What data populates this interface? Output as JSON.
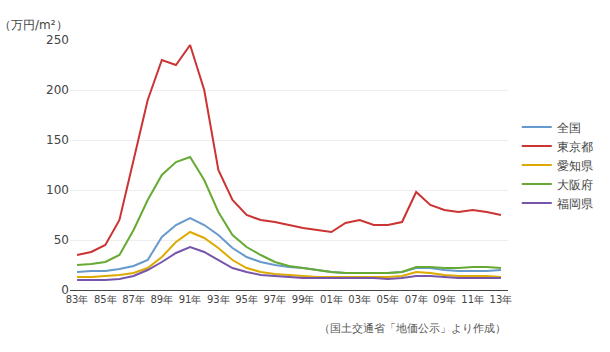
{
  "chart_data": {
    "type": "line",
    "ylabel": "（万円/m²）",
    "annotations": [
      "（国土交通省「地価公示」より作成）"
    ],
    "categories": [
      "83年",
      null,
      "85年",
      null,
      "87年",
      null,
      "89年",
      null,
      "91年",
      null,
      "93年",
      null,
      "95年",
      null,
      "97年",
      null,
      "99年",
      null,
      "01年",
      null,
      "03年",
      null,
      "05年",
      null,
      "07年",
      null,
      "09年",
      null,
      "11年",
      null,
      "13年"
    ],
    "series": [
      {
        "name": "全国",
        "color": "#6699CC",
        "values": [
          18,
          19,
          19,
          21,
          24,
          30,
          53,
          65,
          72,
          65,
          55,
          42,
          33,
          28,
          25,
          23,
          22,
          20,
          18,
          17,
          17,
          17,
          17,
          18,
          22,
          22,
          20,
          19,
          19,
          19,
          20
        ]
      },
      {
        "name": "東京都",
        "color": "#CC3333",
        "values": [
          35,
          38,
          45,
          70,
          130,
          190,
          230,
          225,
          245,
          200,
          120,
          90,
          75,
          70,
          68,
          65,
          62,
          60,
          58,
          67,
          70,
          65,
          65,
          68,
          98,
          85,
          80,
          78,
          80,
          78,
          75
        ]
      },
      {
        "name": "愛知県",
        "color": "#DDAA00",
        "values": [
          13,
          13,
          14,
          15,
          17,
          22,
          33,
          48,
          58,
          52,
          42,
          30,
          22,
          18,
          16,
          15,
          14,
          13,
          13,
          13,
          13,
          13,
          13,
          14,
          18,
          17,
          15,
          14,
          14,
          14,
          13
        ]
      },
      {
        "name": "大阪府",
        "color": "#66AA33",
        "values": [
          25,
          26,
          28,
          35,
          60,
          90,
          115,
          128,
          133,
          110,
          78,
          55,
          43,
          35,
          28,
          24,
          22,
          20,
          18,
          17,
          17,
          17,
          17,
          18,
          23,
          23,
          22,
          22,
          23,
          23,
          22
        ]
      },
      {
        "name": "福岡県",
        "color": "#7755AA",
        "values": [
          10,
          10,
          10,
          11,
          14,
          20,
          28,
          37,
          43,
          38,
          30,
          22,
          18,
          15,
          14,
          13,
          12,
          12,
          12,
          12,
          12,
          12,
          11,
          12,
          14,
          14,
          13,
          12,
          12,
          12,
          12
        ]
      }
    ],
    "ylim": [
      0,
      250
    ],
    "yticks": [
      0,
      50,
      100,
      150,
      200,
      250
    ],
    "grid": true,
    "legend": "right"
  }
}
